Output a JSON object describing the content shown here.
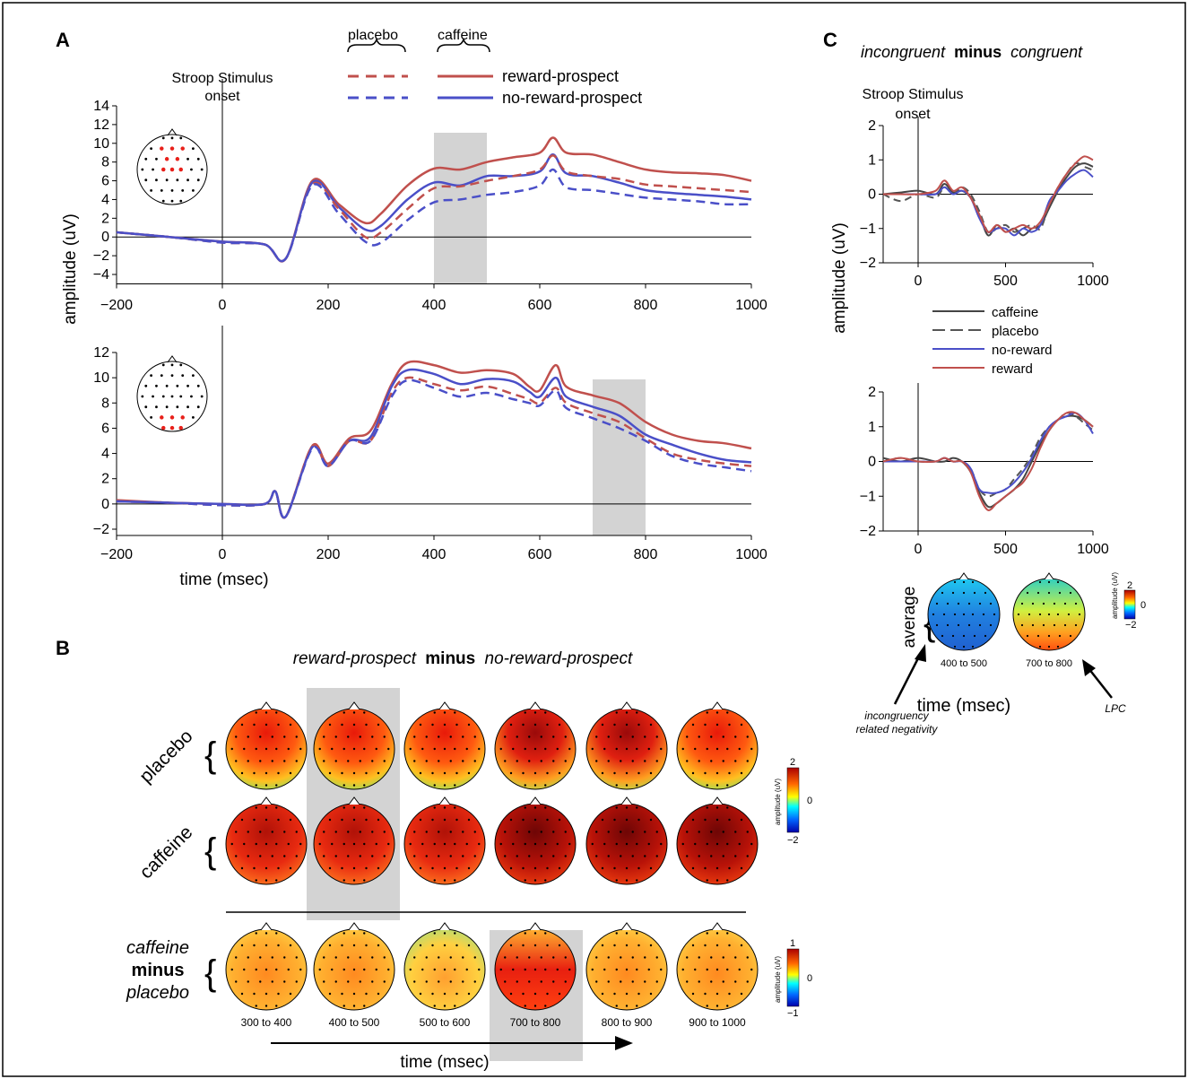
{
  "panel_labels": {
    "a": "A",
    "b": "B",
    "c": "C"
  },
  "legend_a": {
    "placebo": "placebo",
    "caffeine": "caffeine",
    "reward": "reward-prospect",
    "noreward": "no-reward-prospect"
  },
  "colors": {
    "reward": "#c0504d",
    "noreward": "#4a4fc8",
    "caffeine_c": "#444444",
    "placebo_c": "#555555",
    "shade": "#d3d3d3"
  },
  "panel_a": {
    "onset_label": [
      "Stroop Stimulus",
      "onset"
    ],
    "ylabel": "amplitude (uV)",
    "xlabel": "time (msec)"
  },
  "panel_b": {
    "title_parts": [
      "reward-prospect",
      "minus",
      "no-reward-prospect"
    ],
    "row_labels": [
      "placebo",
      "caffeine"
    ],
    "diff_label": [
      "caffeine",
      "minus",
      "placebo"
    ],
    "windows": [
      "300 to 400",
      "400 to 500",
      "500 to 600",
      "700 to 800",
      "800 to 900",
      "900 to 1000"
    ],
    "time_label": "time (msec)",
    "colorbar1": {
      "label": "amplitude (uV)",
      "max": "2",
      "mid": "0",
      "min": "−2"
    },
    "colorbar2": {
      "label": "amplitude (uV)",
      "max": "1",
      "mid": "0",
      "min": "−1"
    }
  },
  "panel_c": {
    "title_parts": [
      "incongruent",
      "minus",
      "congruent"
    ],
    "onset_label": [
      "Stroop Stimulus",
      "onset"
    ],
    "ylabel": "amplitude (uV)",
    "legend": [
      "caffeine",
      "placebo",
      "no-reward",
      "reward"
    ],
    "avg_label": "average",
    "windows": [
      "400 to 500",
      "700 to 800"
    ],
    "time_label": "time (msec)",
    "colorbar": {
      "label": "amplitude (uV)",
      "max": "2",
      "mid": "0",
      "min": "−2"
    },
    "annotations": {
      "left": [
        "incongruency",
        "related negativity"
      ],
      "right": "LPC"
    }
  },
  "chart_data": [
    {
      "type": "line",
      "panel": "A-top",
      "xlabel": "",
      "ylabel": "amplitude (uV)",
      "xlim": [
        -200,
        1000
      ],
      "ylim": [
        -5,
        14
      ],
      "xticks": [
        -200,
        0,
        200,
        400,
        600,
        800,
        1000
      ],
      "yticks": [
        -4,
        -2,
        0,
        2,
        4,
        6,
        8,
        10,
        12,
        14
      ],
      "shaded_window": [
        400,
        500
      ],
      "x": [
        -200,
        -100,
        0,
        80,
        120,
        170,
        220,
        270,
        300,
        350,
        400,
        450,
        500,
        550,
        600,
        625,
        650,
        700,
        750,
        800,
        850,
        900,
        950,
        1000
      ],
      "series": [
        {
          "name": "caffeine reward-prospect",
          "style": "solid",
          "color": "reward",
          "values": [
            0.5,
            0,
            -0.5,
            -0.8,
            -2.3,
            6.0,
            3.5,
            1.5,
            2.5,
            5.5,
            7.3,
            7.2,
            8.0,
            8.5,
            9.0,
            10.6,
            9.0,
            8.8,
            8.0,
            7.2,
            6.9,
            6.8,
            6.6,
            6.0
          ]
        },
        {
          "name": "caffeine no-reward-prospect",
          "style": "solid",
          "color": "noreward",
          "values": [
            0.5,
            0,
            -0.5,
            -0.8,
            -2.3,
            5.8,
            3.2,
            0.8,
            1.2,
            4.0,
            5.8,
            5.5,
            6.5,
            6.5,
            7.0,
            8.8,
            6.8,
            6.5,
            5.8,
            5.0,
            4.7,
            4.5,
            4.3,
            4.0
          ]
        },
        {
          "name": "placebo reward-prospect",
          "style": "dashed",
          "color": "reward",
          "values": [
            0.5,
            0,
            -0.6,
            -0.8,
            -2.3,
            5.6,
            3.0,
            0.0,
            0.5,
            3.0,
            5.2,
            5.4,
            6.0,
            6.5,
            7.2,
            8.7,
            7.0,
            6.5,
            6.2,
            5.6,
            5.4,
            5.2,
            5.0,
            4.8
          ]
        },
        {
          "name": "placebo no-reward-prospect",
          "style": "dashed",
          "color": "noreward",
          "values": [
            0.5,
            0,
            -0.6,
            -0.8,
            -2.3,
            5.5,
            2.5,
            -0.5,
            -0.6,
            1.8,
            3.7,
            4.0,
            4.5,
            4.8,
            5.5,
            7.2,
            5.3,
            5.0,
            4.6,
            4.2,
            4.0,
            3.8,
            3.5,
            3.5
          ]
        }
      ]
    },
    {
      "type": "line",
      "panel": "A-bottom",
      "xlabel": "time (msec)",
      "ylabel": "amplitude (uV)",
      "xlim": [
        -200,
        1000
      ],
      "ylim": [
        -2.5,
        12
      ],
      "xticks": [
        -200,
        0,
        200,
        400,
        600,
        800,
        1000
      ],
      "yticks": [
        -2,
        0,
        2,
        4,
        6,
        8,
        10,
        12
      ],
      "shaded_window": [
        700,
        800
      ],
      "x": [
        -200,
        -100,
        0,
        80,
        100,
        120,
        170,
        200,
        240,
        280,
        320,
        350,
        400,
        450,
        500,
        550,
        580,
        600,
        630,
        650,
        700,
        750,
        800,
        850,
        900,
        950,
        1000
      ],
      "series": [
        {
          "name": "caffeine reward-prospect",
          "style": "solid",
          "color": "reward",
          "values": [
            0.3,
            0.1,
            0.0,
            0.0,
            1.0,
            -1.0,
            4.6,
            3.2,
            5.2,
            5.8,
            9.5,
            11.2,
            11.0,
            10.4,
            10.6,
            10.3,
            9.3,
            9.0,
            11.0,
            9.3,
            8.6,
            8.0,
            6.5,
            5.5,
            5.0,
            4.8,
            4.4
          ]
        },
        {
          "name": "caffeine no-reward-prospect",
          "style": "solid",
          "color": "noreward",
          "values": [
            0.2,
            0.1,
            0.0,
            0.0,
            1.0,
            -1.0,
            4.5,
            3.0,
            5.0,
            5.3,
            9.3,
            10.6,
            10.3,
            9.5,
            9.9,
            9.7,
            8.9,
            8.5,
            10.0,
            8.5,
            7.7,
            7.0,
            5.5,
            4.7,
            4.0,
            3.5,
            3.3
          ]
        },
        {
          "name": "placebo reward-prospect",
          "style": "dashed",
          "color": "reward",
          "values": [
            0.2,
            0.1,
            -0.1,
            0.0,
            1.0,
            -1.0,
            4.6,
            3.0,
            5.0,
            5.0,
            8.8,
            10.0,
            9.5,
            9.0,
            9.3,
            8.7,
            8.3,
            8.0,
            9.2,
            8.0,
            7.2,
            6.5,
            5.2,
            4.0,
            3.5,
            3.2,
            3.0
          ]
        },
        {
          "name": "placebo no-reward-prospect",
          "style": "dashed",
          "color": "noreward",
          "values": [
            0.2,
            0.1,
            -0.1,
            0.0,
            1.0,
            -1.0,
            4.4,
            3.0,
            5.0,
            5.0,
            8.5,
            9.8,
            9.2,
            8.5,
            8.8,
            8.3,
            8.0,
            7.8,
            9.0,
            7.6,
            6.8,
            6.0,
            5.0,
            3.8,
            3.2,
            2.9,
            2.6
          ]
        }
      ]
    },
    {
      "type": "line",
      "panel": "C-top",
      "xlabel": "",
      "ylabel": "amplitude (uV)",
      "xlim": [
        -200,
        1000
      ],
      "ylim": [
        -2,
        2
      ],
      "xticks": [
        0,
        500,
        1000
      ],
      "yticks": [
        -2,
        -1,
        0,
        1,
        2
      ],
      "x": [
        -200,
        -100,
        0,
        100,
        150,
        200,
        250,
        300,
        350,
        400,
        450,
        500,
        550,
        600,
        650,
        700,
        750,
        800,
        850,
        900,
        950,
        1000
      ],
      "series": [
        {
          "name": "caffeine",
          "style": "solid",
          "color": "caffeine_c",
          "values": [
            0,
            0.05,
            0.1,
            0.0,
            0.3,
            0.05,
            0.1,
            -0.1,
            -0.6,
            -1.2,
            -0.9,
            -1.1,
            -1.0,
            -1.2,
            -1.0,
            -0.9,
            -0.4,
            0.1,
            0.5,
            0.8,
            0.9,
            0.8
          ]
        },
        {
          "name": "placebo",
          "style": "dashed",
          "color": "placebo_c",
          "values": [
            0,
            -0.2,
            0.0,
            -0.1,
            0.2,
            0.0,
            0.2,
            0.0,
            -0.5,
            -1.1,
            -1.0,
            -0.9,
            -1.1,
            -1.0,
            -0.9,
            -1.0,
            -0.3,
            0.2,
            0.6,
            0.9,
            0.8,
            0.7
          ]
        },
        {
          "name": "no-reward",
          "style": "solid",
          "color": "noreward",
          "values": [
            0,
            0.0,
            0.0,
            0.0,
            0.2,
            0.0,
            0.1,
            -0.1,
            -0.7,
            -1.1,
            -1.0,
            -1.0,
            -1.2,
            -1.0,
            -1.1,
            -0.9,
            -0.2,
            0.1,
            0.4,
            0.6,
            0.7,
            0.5
          ]
        },
        {
          "name": "reward",
          "style": "solid",
          "color": "reward",
          "values": [
            0,
            0.0,
            0.0,
            0.1,
            0.4,
            0.1,
            0.2,
            -0.1,
            -0.6,
            -1.1,
            -0.9,
            -1.1,
            -1.0,
            -0.9,
            -1.0,
            -0.8,
            -0.3,
            0.2,
            0.6,
            0.9,
            1.1,
            1.0
          ]
        }
      ]
    },
    {
      "type": "line",
      "panel": "C-bottom",
      "xlabel": "",
      "ylabel": "amplitude (uV)",
      "xlim": [
        -200,
        1000
      ],
      "ylim": [
        -2,
        2
      ],
      "xticks": [
        0,
        500,
        1000
      ],
      "yticks": [
        -2,
        -1,
        0,
        1,
        2
      ],
      "x": [
        -200,
        -100,
        0,
        100,
        150,
        200,
        250,
        300,
        350,
        400,
        450,
        500,
        550,
        600,
        650,
        700,
        750,
        800,
        850,
        900,
        950,
        1000
      ],
      "series": [
        {
          "name": "caffeine",
          "style": "solid",
          "color": "caffeine_c",
          "values": [
            0.1,
            0.0,
            0.1,
            0.0,
            0.0,
            0.1,
            0.0,
            -0.3,
            -0.9,
            -1.3,
            -1.2,
            -1.0,
            -0.8,
            -0.5,
            0.0,
            0.5,
            0.9,
            1.2,
            1.3,
            1.3,
            1.2,
            1.0
          ]
        },
        {
          "name": "placebo",
          "style": "dashed",
          "color": "placebo_c",
          "values": [
            0.0,
            0.1,
            0.0,
            0.0,
            0.1,
            0.0,
            0.0,
            -0.2,
            -0.8,
            -1.0,
            -0.9,
            -0.8,
            -0.5,
            -0.2,
            0.2,
            0.7,
            1.0,
            1.2,
            1.4,
            1.3,
            1.1,
            0.9
          ]
        },
        {
          "name": "no-reward",
          "style": "solid",
          "color": "noreward",
          "values": [
            0.0,
            0.0,
            0.0,
            0.0,
            0.1,
            0.0,
            0.0,
            -0.2,
            -0.8,
            -0.9,
            -0.9,
            -0.8,
            -0.6,
            -0.3,
            0.1,
            0.6,
            1.0,
            1.2,
            1.3,
            1.4,
            1.2,
            0.8
          ]
        },
        {
          "name": "reward",
          "style": "solid",
          "color": "reward",
          "values": [
            0.0,
            0.1,
            0.0,
            0.0,
            0.1,
            0.0,
            0.0,
            -0.3,
            -1.0,
            -1.4,
            -1.2,
            -1.0,
            -0.8,
            -0.6,
            -0.2,
            0.4,
            0.9,
            1.2,
            1.4,
            1.4,
            1.2,
            1.0
          ]
        }
      ]
    }
  ]
}
